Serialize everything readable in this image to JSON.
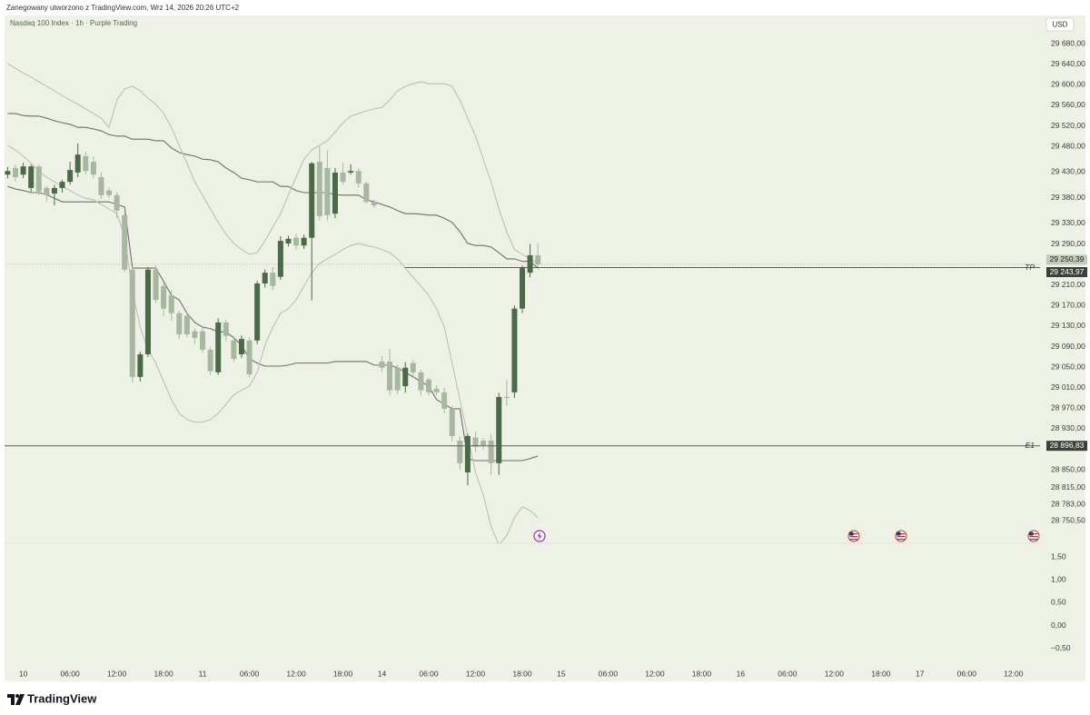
{
  "header": "Zanegowany utworzono z TradingView.com, Wrz 14, 2026 20:26 UTC+2",
  "footer": "TradingView",
  "chart_data": [
    {
      "type": "candlestick",
      "title": "Nasdaq 100 Index · 1h · Purple Trading",
      "currency": "USD",
      "up_color": "#4b6b46",
      "down_color": "#a8b7a0",
      "open": [
        29425,
        29438,
        29425,
        29399,
        29441,
        29399,
        29388,
        29399,
        29411,
        29429,
        29461,
        29450,
        29420,
        29394,
        29385,
        29346,
        29240,
        29031,
        29075,
        29240,
        29208,
        29190,
        29155,
        29150,
        29120,
        29120,
        29084,
        29040,
        29137,
        29102,
        29075,
        29102,
        29102,
        29213,
        29234,
        29226,
        29291,
        29302,
        29287,
        29302,
        29450,
        29438,
        29349,
        29429,
        29429,
        29432,
        29408,
        29372,
        29061,
        29061,
        29049,
        29013,
        29058,
        29040,
        29026,
        29008,
        29001,
        28969,
        28907,
        28845,
        28913,
        28907,
        28907,
        28863,
        28992,
        29001,
        29164,
        29234,
        29268
      ],
      "high": [
        29440,
        29445,
        29448,
        29445,
        29445,
        29403,
        29405,
        29415,
        29450,
        29486,
        29470,
        29460,
        29430,
        29400,
        29390,
        29350,
        29245,
        29080,
        29245,
        29248,
        29215,
        29200,
        29160,
        29158,
        29125,
        29128,
        29090,
        29145,
        29142,
        29110,
        29112,
        29108,
        29218,
        29240,
        29245,
        29305,
        29306,
        29310,
        29308,
        29450,
        29480,
        29472,
        29438,
        29448,
        29445,
        29438,
        29412,
        29376,
        29072,
        29085,
        29055,
        29060,
        29064,
        29045,
        29030,
        29015,
        29010,
        28975,
        28915,
        28920,
        28925,
        28912,
        28920,
        29000,
        29025,
        29170,
        29248,
        29290,
        29290
      ],
      "low": [
        29418,
        29412,
        29418,
        29392,
        29385,
        29372,
        29365,
        29390,
        29405,
        29420,
        29425,
        29418,
        29378,
        29380,
        29340,
        29235,
        29020,
        29022,
        29070,
        29175,
        29150,
        29140,
        29105,
        29108,
        29095,
        29078,
        29035,
        29035,
        29100,
        29060,
        29068,
        29030,
        29095,
        29205,
        29200,
        29220,
        29285,
        29278,
        29280,
        29180,
        29335,
        29335,
        29340,
        29405,
        29425,
        29400,
        29368,
        29360,
        29040,
        28995,
        28998,
        29000,
        29030,
        28995,
        28995,
        28995,
        28960,
        28905,
        28850,
        28820,
        28885,
        28890,
        28840,
        28840,
        28975,
        28990,
        29155,
        29225,
        29240
      ],
      "close": [
        29432,
        29420,
        29441,
        29441,
        29392,
        29385,
        29399,
        29411,
        29434,
        29464,
        29432,
        29425,
        29385,
        29385,
        29355,
        29240,
        29031,
        29075,
        29240,
        29181,
        29164,
        29155,
        29114,
        29114,
        29107,
        29084,
        29042,
        29137,
        29111,
        29066,
        29105,
        29036,
        29213,
        29234,
        29208,
        29296,
        29300,
        29287,
        29302,
        29447,
        29344,
        29346,
        29429,
        29411,
        29432,
        29408,
        29372,
        29365,
        29049,
        29005,
        29005,
        29049,
        29040,
        29005,
        29001,
        29001,
        28969,
        28916,
        28863,
        28916,
        28895,
        28898,
        28863,
        28992,
        28990,
        29164,
        29243,
        29268,
        29250.39
      ],
      "last_label": "29 250,39",
      "overlays": [
        {
          "color": "#6d716a",
          "values": [
            29544,
            29544,
            29540,
            29539,
            29539,
            29535,
            29530,
            29526,
            29523,
            29517,
            29517,
            29514,
            29510,
            29503,
            29500,
            29500,
            29494,
            29494,
            29494,
            29491,
            29491,
            29477,
            29468,
            29464,
            29461,
            29455,
            29454,
            29450,
            29438,
            29429,
            29418,
            29415,
            29411,
            29411,
            29411,
            29402,
            29402,
            29394,
            29390,
            29390,
            29390,
            29390,
            29386,
            29385,
            29385,
            29385,
            29376,
            29372,
            29367,
            29362,
            29355,
            29349,
            29349,
            29348,
            29346,
            29346,
            29340,
            29332,
            29314,
            29291,
            29287,
            29287,
            29284,
            29273,
            29261,
            29261,
            29256,
            29256,
            29243
          ]
        },
        {
          "color": "#6d716a",
          "values": [
            29402,
            29397,
            29394,
            29390,
            29390,
            29386,
            29379,
            29372,
            29372,
            29372,
            29372,
            29372,
            29372,
            29372,
            29367,
            29362,
            29243,
            29243,
            29243,
            29243,
            29217,
            29190,
            29181,
            29155,
            29137,
            29128,
            29125,
            29119,
            29119,
            29107,
            29093,
            29066,
            29058,
            29052,
            29052,
            29052,
            29054,
            29058,
            29058,
            29058,
            29058,
            29058,
            29061,
            29061,
            29061,
            29061,
            29061,
            29054,
            29054,
            29054,
            29049,
            29040,
            29031,
            29022,
            29013,
            28987,
            28978,
            28969,
            28969,
            28872,
            28868,
            28868,
            28868,
            28868,
            28868,
            28868,
            28868,
            28872,
            28877
          ]
        },
        {
          "color": "#bcc0b7",
          "values": [
            29641,
            29632,
            29623,
            29615,
            29606,
            29597,
            29588,
            29579,
            29570,
            29562,
            29553,
            29544,
            29535,
            29517,
            29570,
            29592,
            29597,
            29588,
            29574,
            29562,
            29544,
            29517,
            29482,
            29447,
            29411,
            29385,
            29358,
            29332,
            29309,
            29291,
            29279,
            29270,
            29273,
            29296,
            29323,
            29349,
            29385,
            29420,
            29455,
            29473,
            29482,
            29491,
            29508,
            29526,
            29539,
            29544,
            29549,
            29553,
            29556,
            29570,
            29588,
            29597,
            29602,
            29606,
            29602,
            29602,
            29602,
            29597,
            29570,
            29535,
            29500,
            29455,
            29411,
            29358,
            29314,
            29279,
            29270,
            29261,
            29252
          ]
        },
        {
          "color": "#bcc0b7",
          "values": [
            29482,
            29473,
            29461,
            29447,
            29432,
            29420,
            29411,
            29402,
            29394,
            29385,
            29379,
            29376,
            29367,
            29358,
            29349,
            29305,
            29199,
            29128,
            29084,
            29058,
            29022,
            28987,
            28960,
            28948,
            28943,
            28943,
            28948,
            28960,
            28978,
            28996,
            29005,
            29013,
            29040,
            29093,
            29128,
            29155,
            29164,
            29181,
            29208,
            29234,
            29252,
            29261,
            29270,
            29279,
            29287,
            29291,
            29287,
            29284,
            29279,
            29273,
            29261,
            29243,
            29225,
            29208,
            29190,
            29164,
            29128,
            29058,
            28987,
            28916,
            28845,
            28801,
            28739,
            28704,
            28722,
            28757,
            28778,
            28771,
            28757
          ]
        }
      ],
      "hlines": [
        {
          "label": "TP",
          "value": 29243.97,
          "value_label": "29 243,97",
          "x_start": 51
        },
        {
          "label": "E1",
          "value": 28896.83,
          "value_label": "28 896,83"
        }
      ],
      "ylim": [
        28707,
        29735
      ],
      "yticks": [
        {
          "value": 29680,
          "label": "29 680,00"
        },
        {
          "value": 29640,
          "label": "29 640,00"
        },
        {
          "value": 29600,
          "label": "29 600,00"
        },
        {
          "value": 29560,
          "label": "29 560,00"
        },
        {
          "value": 29520,
          "label": "29 520,00"
        },
        {
          "value": 29480,
          "label": "29 480,00"
        },
        {
          "value": 29430,
          "label": "29 430,00"
        },
        {
          "value": 29380,
          "label": "29 380,00"
        },
        {
          "value": 29330,
          "label": "29 330,00"
        },
        {
          "value": 29290,
          "label": "29 290,00"
        },
        {
          "value": 29210,
          "label": "29 210,00"
        },
        {
          "value": 29170,
          "label": "29 170,00"
        },
        {
          "value": 29130,
          "label": "29 130,00"
        },
        {
          "value": 29090,
          "label": "29 090,00"
        },
        {
          "value": 29050,
          "label": "29 050,00"
        },
        {
          "value": 29010,
          "label": "29 010,00"
        },
        {
          "value": 28970,
          "label": "28 970,00"
        },
        {
          "value": 28930,
          "label": "28 930,00"
        },
        {
          "value": 28850,
          "label": "28 850,00"
        },
        {
          "value": 28815,
          "label": "28 815,00"
        },
        {
          "value": 28783,
          "label": "28 783,00"
        },
        {
          "value": 28750.5,
          "label": "28 750,50"
        }
      ],
      "xlim": [
        -0.4,
        132.4
      ],
      "xticks": [
        {
          "value": 2,
          "label": "10"
        },
        {
          "value": 8,
          "label": "06:00"
        },
        {
          "value": 14,
          "label": "12:00"
        },
        {
          "value": 20,
          "label": "18:00"
        },
        {
          "value": 25,
          "label": "11"
        },
        {
          "value": 31,
          "label": "06:00"
        },
        {
          "value": 37,
          "label": "12:00"
        },
        {
          "value": 43,
          "label": "18:00"
        },
        {
          "value": 48,
          "label": "14"
        },
        {
          "value": 54,
          "label": "06:00"
        },
        {
          "value": 60,
          "label": "12:00"
        },
        {
          "value": 66,
          "label": "18:00"
        },
        {
          "value": 71,
          "label": "15"
        },
        {
          "value": 77,
          "label": "06:00"
        },
        {
          "value": 83,
          "label": "12:00"
        },
        {
          "value": 89,
          "label": "18:00"
        },
        {
          "value": 94,
          "label": "16"
        },
        {
          "value": 100,
          "label": "06:00"
        },
        {
          "value": 106,
          "label": "12:00"
        },
        {
          "value": 112,
          "label": "18:00"
        },
        {
          "value": 117,
          "label": "17"
        },
        {
          "value": 123,
          "label": "06:00"
        },
        {
          "value": 129,
          "label": "12:00"
        }
      ]
    },
    {
      "type": "line",
      "ylim": [
        -0.88,
        1.8
      ],
      "yticks": [
        {
          "value": 1.5,
          "label": "1,50"
        },
        {
          "value": 1,
          "label": "1,00"
        },
        {
          "value": 0.5,
          "label": "0,50"
        },
        {
          "value": 0,
          "label": "0,00"
        },
        {
          "value": -0.5,
          "label": "−0,50"
        }
      ]
    }
  ]
}
